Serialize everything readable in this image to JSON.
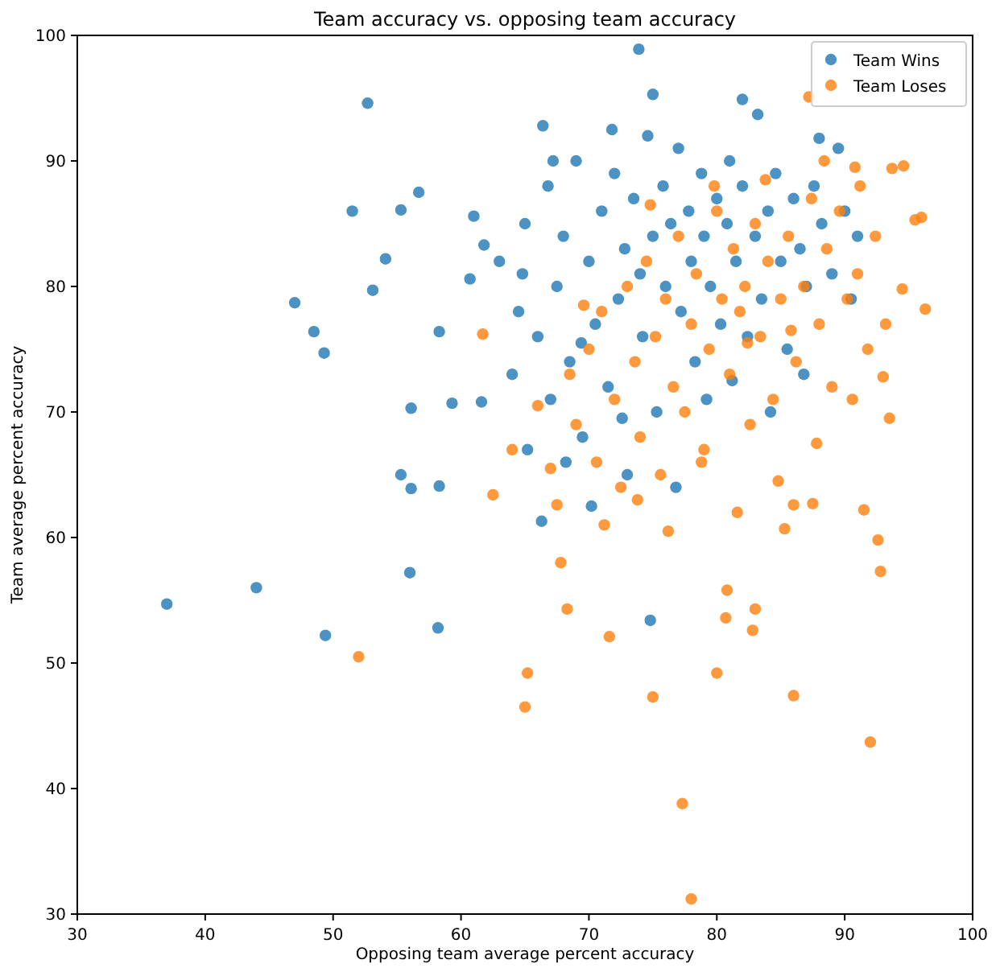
{
  "chart_data": {
    "type": "scatter",
    "title": "Team accuracy vs. opposing team accuracy",
    "xlabel": "Opposing team average percent accuracy",
    "ylabel": "Team average percent accuracy",
    "xlim": [
      30,
      100
    ],
    "ylim": [
      30,
      100
    ],
    "xticks": [
      30,
      40,
      50,
      60,
      70,
      80,
      90,
      100
    ],
    "yticks": [
      30,
      40,
      50,
      60,
      70,
      80,
      90,
      100
    ],
    "legend": "top right",
    "marker": "circle",
    "grid": false,
    "series": [
      {
        "name": "Team Wins",
        "color": "#1f77b4",
        "x": [
          37,
          44,
          49.4,
          56,
          58.2,
          47,
          48.5,
          49.3,
          51.5,
          52.7,
          53.1,
          54.1,
          55.3,
          56.7,
          55.3,
          56.1,
          56.1,
          58.3,
          58.3,
          59.3,
          60.7,
          61,
          61.6,
          61.8,
          66.3,
          74.8,
          73.9,
          66.4,
          75,
          82,
          83.2,
          88,
          89.5,
          63,
          64,
          64.5,
          65,
          65.2,
          66,
          66.8,
          67,
          67.5,
          68,
          68.5,
          69,
          69.5,
          70,
          70.5,
          71,
          71.5,
          72,
          72.3,
          72.8,
          73,
          73.5,
          74,
          74.2,
          74.6,
          75,
          75.3,
          75.8,
          76,
          76.4,
          77,
          77.2,
          77.8,
          78,
          78.3,
          78.8,
          79,
          79.5,
          80,
          80.3,
          80.8,
          81,
          81.5,
          82,
          82.4,
          83,
          83.5,
          84,
          84.6,
          85,
          85.5,
          86,
          86.5,
          87,
          87.6,
          88.2,
          89,
          90,
          90.5,
          91,
          68.2,
          70.2,
          72.6,
          76.8,
          79.2,
          81.2,
          84.2,
          86.8,
          64.8,
          67.2,
          69.4,
          71.8
        ],
        "values": [
          54.7,
          56,
          52.2,
          57.2,
          52.8,
          78.7,
          76.4,
          74.7,
          86,
          94.6,
          79.7,
          82.2,
          86.1,
          87.5,
          65,
          70.3,
          63.9,
          64.1,
          76.4,
          70.7,
          80.6,
          85.6,
          70.8,
          83.3,
          61.3,
          53.4,
          98.9,
          92.8,
          95.3,
          94.9,
          93.7,
          91.8,
          91,
          82,
          73,
          78,
          85,
          67,
          76,
          88,
          71,
          80,
          84,
          74,
          90,
          68,
          82,
          77,
          86,
          72,
          89,
          79,
          83,
          65,
          87,
          81,
          76,
          92,
          84,
          70,
          88,
          80,
          85,
          91,
          78,
          86,
          82,
          74,
          89,
          84,
          80,
          87,
          77,
          85,
          90,
          82,
          88,
          76,
          84,
          79,
          86,
          89,
          82,
          75,
          87,
          83,
          80,
          88,
          85,
          81,
          86,
          79,
          84,
          66,
          62.5,
          69.5,
          64,
          71,
          72.5,
          70,
          73,
          81,
          90,
          75.5,
          92.5
        ]
      },
      {
        "name": "Team Loses",
        "color": "#ff7f0e",
        "x": [
          52,
          65,
          65.2,
          61.7,
          62.5,
          67.5,
          67.8,
          68.3,
          71.6,
          75,
          77.3,
          78,
          80,
          80.7,
          80.8,
          82.8,
          83,
          86,
          92,
          92.6,
          92.8,
          91.5,
          87.5,
          85.3,
          86,
          96.3,
          95.5,
          96,
          94.6,
          93.7,
          90.8,
          87.2,
          93,
          94.5,
          93.5,
          64,
          66,
          67,
          68.5,
          69,
          70,
          70.6,
          71,
          72,
          72.5,
          73,
          73.6,
          74,
          74.5,
          75.2,
          75.6,
          76,
          76.6,
          77,
          77.5,
          78,
          78.4,
          79,
          79.4,
          80,
          80.4,
          81,
          81.3,
          81.8,
          82.2,
          82.6,
          83,
          83.4,
          84,
          84.4,
          85,
          85.6,
          86.2,
          86.8,
          87.4,
          88,
          88.6,
          89,
          89.6,
          90.2,
          91,
          91.8,
          92.4,
          93.2,
          71.2,
          73.8,
          76.2,
          78.8,
          81.6,
          84.8,
          87.8,
          90.6,
          69.6,
          74.8,
          79.8,
          83.8,
          88.4,
          91.2,
          82.4,
          85.8
        ],
        "values": [
          50.5,
          46.5,
          49.2,
          76.2,
          63.4,
          62.6,
          58,
          54.3,
          52.1,
          47.3,
          38.8,
          31.2,
          49.2,
          53.6,
          55.8,
          52.6,
          54.3,
          47.4,
          43.7,
          59.8,
          57.3,
          62.2,
          62.7,
          60.7,
          62.6,
          78.2,
          85.3,
          85.5,
          89.6,
          89.4,
          89.5,
          95.1,
          72.8,
          79.8,
          69.5,
          67,
          70.5,
          65.5,
          73,
          69,
          75,
          66,
          78,
          71,
          64,
          80,
          74,
          68,
          82,
          76,
          65,
          79,
          72,
          84,
          70,
          77,
          81,
          67,
          75,
          86,
          79,
          73,
          83,
          78,
          80,
          69,
          85,
          76,
          82,
          71,
          79,
          84,
          74,
          80,
          87,
          77,
          83,
          72,
          86,
          79,
          81,
          75,
          84,
          77,
          61,
          63,
          60.5,
          66,
          62,
          64.5,
          67.5,
          71,
          78.5,
          86.5,
          88,
          88.5,
          90,
          88,
          75.5,
          76.5
        ]
      }
    ]
  }
}
